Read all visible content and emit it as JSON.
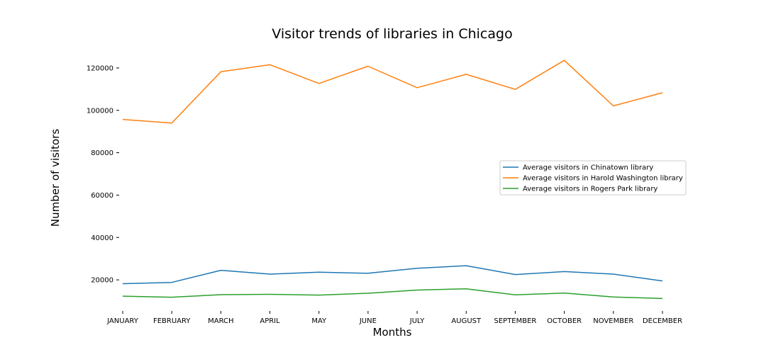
{
  "chart_data": {
    "type": "line",
    "title": "Visitor trends of libraries in Chicago",
    "xlabel": "Months",
    "ylabel": "Number of visitors",
    "categories": [
      "JANUARY",
      "FEBRUARY",
      "MARCH",
      "APRIL",
      "MAY",
      "JUNE",
      "JULY",
      "AUGUST",
      "SEPTEMBER",
      "OCTOBER",
      "NOVEMBER",
      "DECEMBER"
    ],
    "ylim": [
      7000,
      128000
    ],
    "yticks": [
      20000,
      40000,
      60000,
      80000,
      100000,
      120000
    ],
    "grid": false,
    "legend_position": "center-right",
    "series": [
      {
        "name": "Average visitors in Chinatown library",
        "color": "#1f77b4",
        "values": [
          18200,
          18800,
          24500,
          22700,
          23600,
          23100,
          25500,
          26700,
          22500,
          23900,
          22700,
          19500
        ]
      },
      {
        "name": "Average visitors in Harold Washington library",
        "color": "#ff7f0e",
        "values": [
          95700,
          94000,
          118200,
          121500,
          112700,
          120800,
          110700,
          117000,
          109900,
          123600,
          102100,
          108300
        ]
      },
      {
        "name": "Average visitors in Rogers Park library",
        "color": "#2ca02c",
        "values": [
          12300,
          11800,
          13000,
          13200,
          12800,
          13700,
          15200,
          15800,
          12900,
          13800,
          11900,
          11200
        ]
      }
    ]
  }
}
